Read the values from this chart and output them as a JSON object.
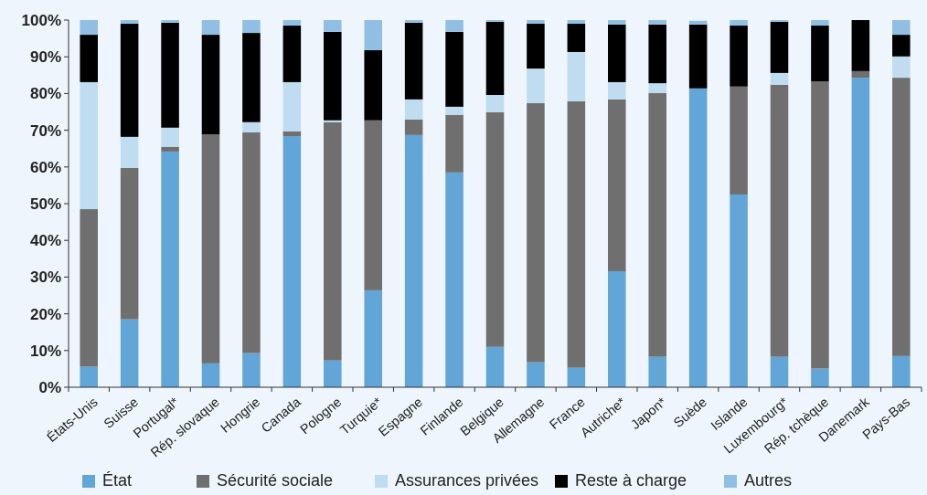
{
  "chart_data": {
    "type": "bar",
    "stacked": true,
    "categories": [
      "États-Unis",
      "Suisse",
      "Portugal*",
      "Rép. slovaque",
      "Hongrie",
      "Canada",
      "Pologne",
      "Turquie*",
      "Espagne",
      "Finlande",
      "Belgique",
      "Allemagne",
      "France",
      "Autriche*",
      "Japon*",
      "Suède",
      "Islande",
      "Luxembourg*",
      "Rép. tchèque",
      "Danemark",
      "Pays-Bas"
    ],
    "series": [
      {
        "name": "État",
        "color": "#62a5d7",
        "values": [
          5.6,
          18.5,
          64.2,
          6.5,
          9.3,
          68.4,
          7.3,
          26.4,
          68.7,
          58.5,
          11.0,
          6.8,
          5.3,
          31.6,
          8.3,
          81.4,
          52.5,
          8.3,
          5.1,
          84.3,
          8.5
        ]
      },
      {
        "name": "Sécurité sociale",
        "color": "#6f6f6f",
        "values": [
          42.9,
          41.2,
          1.3,
          62.4,
          60.1,
          1.3,
          64.9,
          46.3,
          4.2,
          15.7,
          63.9,
          70.6,
          72.6,
          46.8,
          71.8,
          0,
          29.4,
          74.1,
          78.2,
          1.8,
          75.8
        ]
      },
      {
        "name": "Assurances privées",
        "color": "#c0dcf0",
        "values": [
          34.6,
          8.5,
          5.2,
          0,
          2.8,
          13.4,
          0.5,
          0,
          5.5,
          2.2,
          4.7,
          9.4,
          13.4,
          4.7,
          2.7,
          null,
          0,
          3.2,
          0,
          0,
          5.8
        ]
      },
      {
        "name": "Reste à charge",
        "color": "#000000",
        "values": [
          12.9,
          30.8,
          28.6,
          27.1,
          24.3,
          15.4,
          24.1,
          19.1,
          20.9,
          20.4,
          19.9,
          12.2,
          7.7,
          15.7,
          16.0,
          17.4,
          16.6,
          13.9,
          15.2,
          13.9,
          5.9
        ]
      },
      {
        "name": "Autres",
        "color": "#91bfe3",
        "values": [
          4.0,
          1.0,
          0.7,
          4.0,
          3.5,
          1.5,
          3.2,
          8.2,
          0.7,
          3.2,
          0.5,
          1.0,
          1.0,
          1.2,
          1.2,
          1.0,
          1.5,
          0.5,
          1.5,
          0,
          4.0
        ]
      }
    ],
    "ylim": [
      0,
      100
    ],
    "yticks": [
      {
        "value": 0,
        "label": "0%"
      },
      {
        "value": 10,
        "label": "10%"
      },
      {
        "value": 20,
        "label": "20%"
      },
      {
        "value": 30,
        "label": "30%"
      },
      {
        "value": 40,
        "label": "40%"
      },
      {
        "value": 50,
        "label": "50%"
      },
      {
        "value": 60,
        "label": "60%"
      },
      {
        "value": 70,
        "label": "70%"
      },
      {
        "value": 80,
        "label": "80%"
      },
      {
        "value": 90,
        "label": "90%"
      },
      {
        "value": 100,
        "label": "100%"
      }
    ],
    "grid": false,
    "legend": "bottom"
  }
}
